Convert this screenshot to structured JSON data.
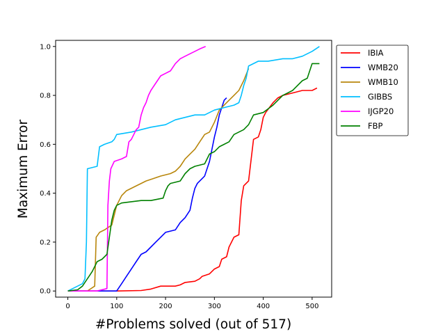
{
  "chart_data": {
    "type": "line",
    "title": "",
    "xlabel": "#Problems solved (out of 517)",
    "ylabel": "Maximum Error",
    "xlim": [
      -25,
      540
    ],
    "ylim": [
      -0.025,
      1.025
    ],
    "xticks": [
      0,
      100,
      200,
      300,
      400,
      500
    ],
    "yticks": [
      0.0,
      0.2,
      0.4,
      0.6,
      0.8,
      1.0
    ],
    "ytick_labels": [
      "0.0",
      "0.2",
      "0.4",
      "0.6",
      "0.8",
      "1.0"
    ],
    "grid": false,
    "legend_position": "outside-top-right",
    "series": [
      {
        "name": "IBIA",
        "color": "#ff0000",
        "points": [
          [
            0,
            0
          ],
          [
            100,
            0
          ],
          [
            150,
            0.002
          ],
          [
            170,
            0.008
          ],
          [
            190,
            0.02
          ],
          [
            220,
            0.02
          ],
          [
            230,
            0.025
          ],
          [
            240,
            0.035
          ],
          [
            260,
            0.04
          ],
          [
            270,
            0.05
          ],
          [
            275,
            0.06
          ],
          [
            290,
            0.07
          ],
          [
            300,
            0.09
          ],
          [
            310,
            0.1
          ],
          [
            315,
            0.13
          ],
          [
            325,
            0.14
          ],
          [
            330,
            0.18
          ],
          [
            340,
            0.22
          ],
          [
            350,
            0.23
          ],
          [
            355,
            0.37
          ],
          [
            360,
            0.43
          ],
          [
            370,
            0.45
          ],
          [
            380,
            0.62
          ],
          [
            390,
            0.63
          ],
          [
            395,
            0.66
          ],
          [
            400,
            0.71
          ],
          [
            405,
            0.73
          ],
          [
            420,
            0.77
          ],
          [
            430,
            0.79
          ],
          [
            440,
            0.8
          ],
          [
            460,
            0.81
          ],
          [
            480,
            0.82
          ],
          [
            500,
            0.82
          ],
          [
            510,
            0.83
          ]
        ]
      },
      {
        "name": "WMB20",
        "color": "#0000ff",
        "points": [
          [
            0,
            0
          ],
          [
            100,
            0
          ],
          [
            110,
            0.03
          ],
          [
            120,
            0.06
          ],
          [
            130,
            0.09
          ],
          [
            140,
            0.12
          ],
          [
            150,
            0.15
          ],
          [
            160,
            0.16
          ],
          [
            170,
            0.18
          ],
          [
            180,
            0.2
          ],
          [
            190,
            0.22
          ],
          [
            200,
            0.24
          ],
          [
            210,
            0.245
          ],
          [
            220,
            0.25
          ],
          [
            230,
            0.28
          ],
          [
            240,
            0.3
          ],
          [
            250,
            0.33
          ],
          [
            255,
            0.38
          ],
          [
            260,
            0.42
          ],
          [
            265,
            0.44
          ],
          [
            270,
            0.45
          ],
          [
            275,
            0.46
          ],
          [
            280,
            0.47
          ],
          [
            290,
            0.53
          ],
          [
            300,
            0.63
          ],
          [
            305,
            0.67
          ],
          [
            310,
            0.72
          ],
          [
            315,
            0.75
          ],
          [
            320,
            0.78
          ],
          [
            325,
            0.79
          ]
        ]
      },
      {
        "name": "WMB10",
        "color": "#b8860b",
        "points": [
          [
            0,
            0
          ],
          [
            40,
            0
          ],
          [
            55,
            0.02
          ],
          [
            58,
            0.22
          ],
          [
            65,
            0.24
          ],
          [
            75,
            0.25
          ],
          [
            90,
            0.27
          ],
          [
            100,
            0.35
          ],
          [
            110,
            0.39
          ],
          [
            120,
            0.41
          ],
          [
            130,
            0.42
          ],
          [
            140,
            0.43
          ],
          [
            150,
            0.44
          ],
          [
            160,
            0.45
          ],
          [
            175,
            0.46
          ],
          [
            190,
            0.47
          ],
          [
            210,
            0.48
          ],
          [
            220,
            0.49
          ],
          [
            230,
            0.51
          ],
          [
            240,
            0.54
          ],
          [
            250,
            0.56
          ],
          [
            260,
            0.58
          ],
          [
            270,
            0.61
          ],
          [
            280,
            0.64
          ],
          [
            290,
            0.65
          ],
          [
            300,
            0.69
          ],
          [
            310,
            0.74
          ],
          [
            320,
            0.76
          ],
          [
            330,
            0.78
          ],
          [
            340,
            0.8
          ],
          [
            350,
            0.82
          ],
          [
            360,
            0.86
          ],
          [
            370,
            0.91
          ]
        ]
      },
      {
        "name": "GIBBS",
        "color": "#00bfff",
        "points": [
          [
            0,
            0
          ],
          [
            10,
            0.01
          ],
          [
            20,
            0.02
          ],
          [
            30,
            0.03
          ],
          [
            35,
            0.05
          ],
          [
            38,
            0.2
          ],
          [
            40,
            0.5
          ],
          [
            60,
            0.51
          ],
          [
            65,
            0.59
          ],
          [
            75,
            0.6
          ],
          [
            90,
            0.61
          ],
          [
            95,
            0.62
          ],
          [
            100,
            0.64
          ],
          [
            130,
            0.65
          ],
          [
            150,
            0.66
          ],
          [
            170,
            0.67
          ],
          [
            200,
            0.68
          ],
          [
            220,
            0.7
          ],
          [
            240,
            0.71
          ],
          [
            260,
            0.72
          ],
          [
            280,
            0.72
          ],
          [
            300,
            0.74
          ],
          [
            320,
            0.75
          ],
          [
            340,
            0.76
          ],
          [
            350,
            0.77
          ],
          [
            355,
            0.8
          ],
          [
            360,
            0.84
          ],
          [
            365,
            0.87
          ],
          [
            370,
            0.92
          ],
          [
            380,
            0.93
          ],
          [
            390,
            0.94
          ],
          [
            410,
            0.94
          ],
          [
            440,
            0.95
          ],
          [
            460,
            0.95
          ],
          [
            480,
            0.96
          ],
          [
            500,
            0.98
          ],
          [
            515,
            1.0
          ]
        ]
      },
      {
        "name": "IJGP20",
        "color": "#ff00ff",
        "points": [
          [
            0,
            0
          ],
          [
            60,
            0
          ],
          [
            80,
            0.01
          ],
          [
            82,
            0.35
          ],
          [
            85,
            0.45
          ],
          [
            88,
            0.5
          ],
          [
            95,
            0.53
          ],
          [
            110,
            0.54
          ],
          [
            120,
            0.55
          ],
          [
            125,
            0.61
          ],
          [
            130,
            0.62
          ],
          [
            140,
            0.66
          ],
          [
            145,
            0.67
          ],
          [
            150,
            0.72
          ],
          [
            155,
            0.75
          ],
          [
            160,
            0.77
          ],
          [
            165,
            0.8
          ],
          [
            170,
            0.82
          ],
          [
            180,
            0.85
          ],
          [
            190,
            0.88
          ],
          [
            200,
            0.89
          ],
          [
            210,
            0.9
          ],
          [
            220,
            0.93
          ],
          [
            230,
            0.95
          ],
          [
            240,
            0.96
          ],
          [
            250,
            0.97
          ],
          [
            260,
            0.98
          ],
          [
            270,
            0.99
          ],
          [
            282,
            1.0
          ]
        ]
      },
      {
        "name": "FBP",
        "color": "#008000",
        "points": [
          [
            0,
            0
          ],
          [
            20,
            0.005
          ],
          [
            30,
            0.02
          ],
          [
            40,
            0.05
          ],
          [
            50,
            0.08
          ],
          [
            60,
            0.12
          ],
          [
            70,
            0.13
          ],
          [
            80,
            0.15
          ],
          [
            85,
            0.22
          ],
          [
            90,
            0.29
          ],
          [
            95,
            0.33
          ],
          [
            100,
            0.35
          ],
          [
            110,
            0.36
          ],
          [
            130,
            0.365
          ],
          [
            150,
            0.37
          ],
          [
            170,
            0.37
          ],
          [
            195,
            0.38
          ],
          [
            200,
            0.41
          ],
          [
            205,
            0.43
          ],
          [
            210,
            0.44
          ],
          [
            230,
            0.45
          ],
          [
            240,
            0.48
          ],
          [
            250,
            0.5
          ],
          [
            260,
            0.51
          ],
          [
            280,
            0.52
          ],
          [
            290,
            0.56
          ],
          [
            300,
            0.57
          ],
          [
            310,
            0.59
          ],
          [
            320,
            0.6
          ],
          [
            330,
            0.61
          ],
          [
            340,
            0.64
          ],
          [
            350,
            0.65
          ],
          [
            360,
            0.66
          ],
          [
            370,
            0.68
          ],
          [
            380,
            0.72
          ],
          [
            400,
            0.73
          ],
          [
            420,
            0.76
          ],
          [
            440,
            0.8
          ],
          [
            450,
            0.81
          ],
          [
            460,
            0.82
          ],
          [
            480,
            0.86
          ],
          [
            490,
            0.87
          ],
          [
            500,
            0.93
          ],
          [
            515,
            0.93
          ]
        ]
      }
    ]
  }
}
